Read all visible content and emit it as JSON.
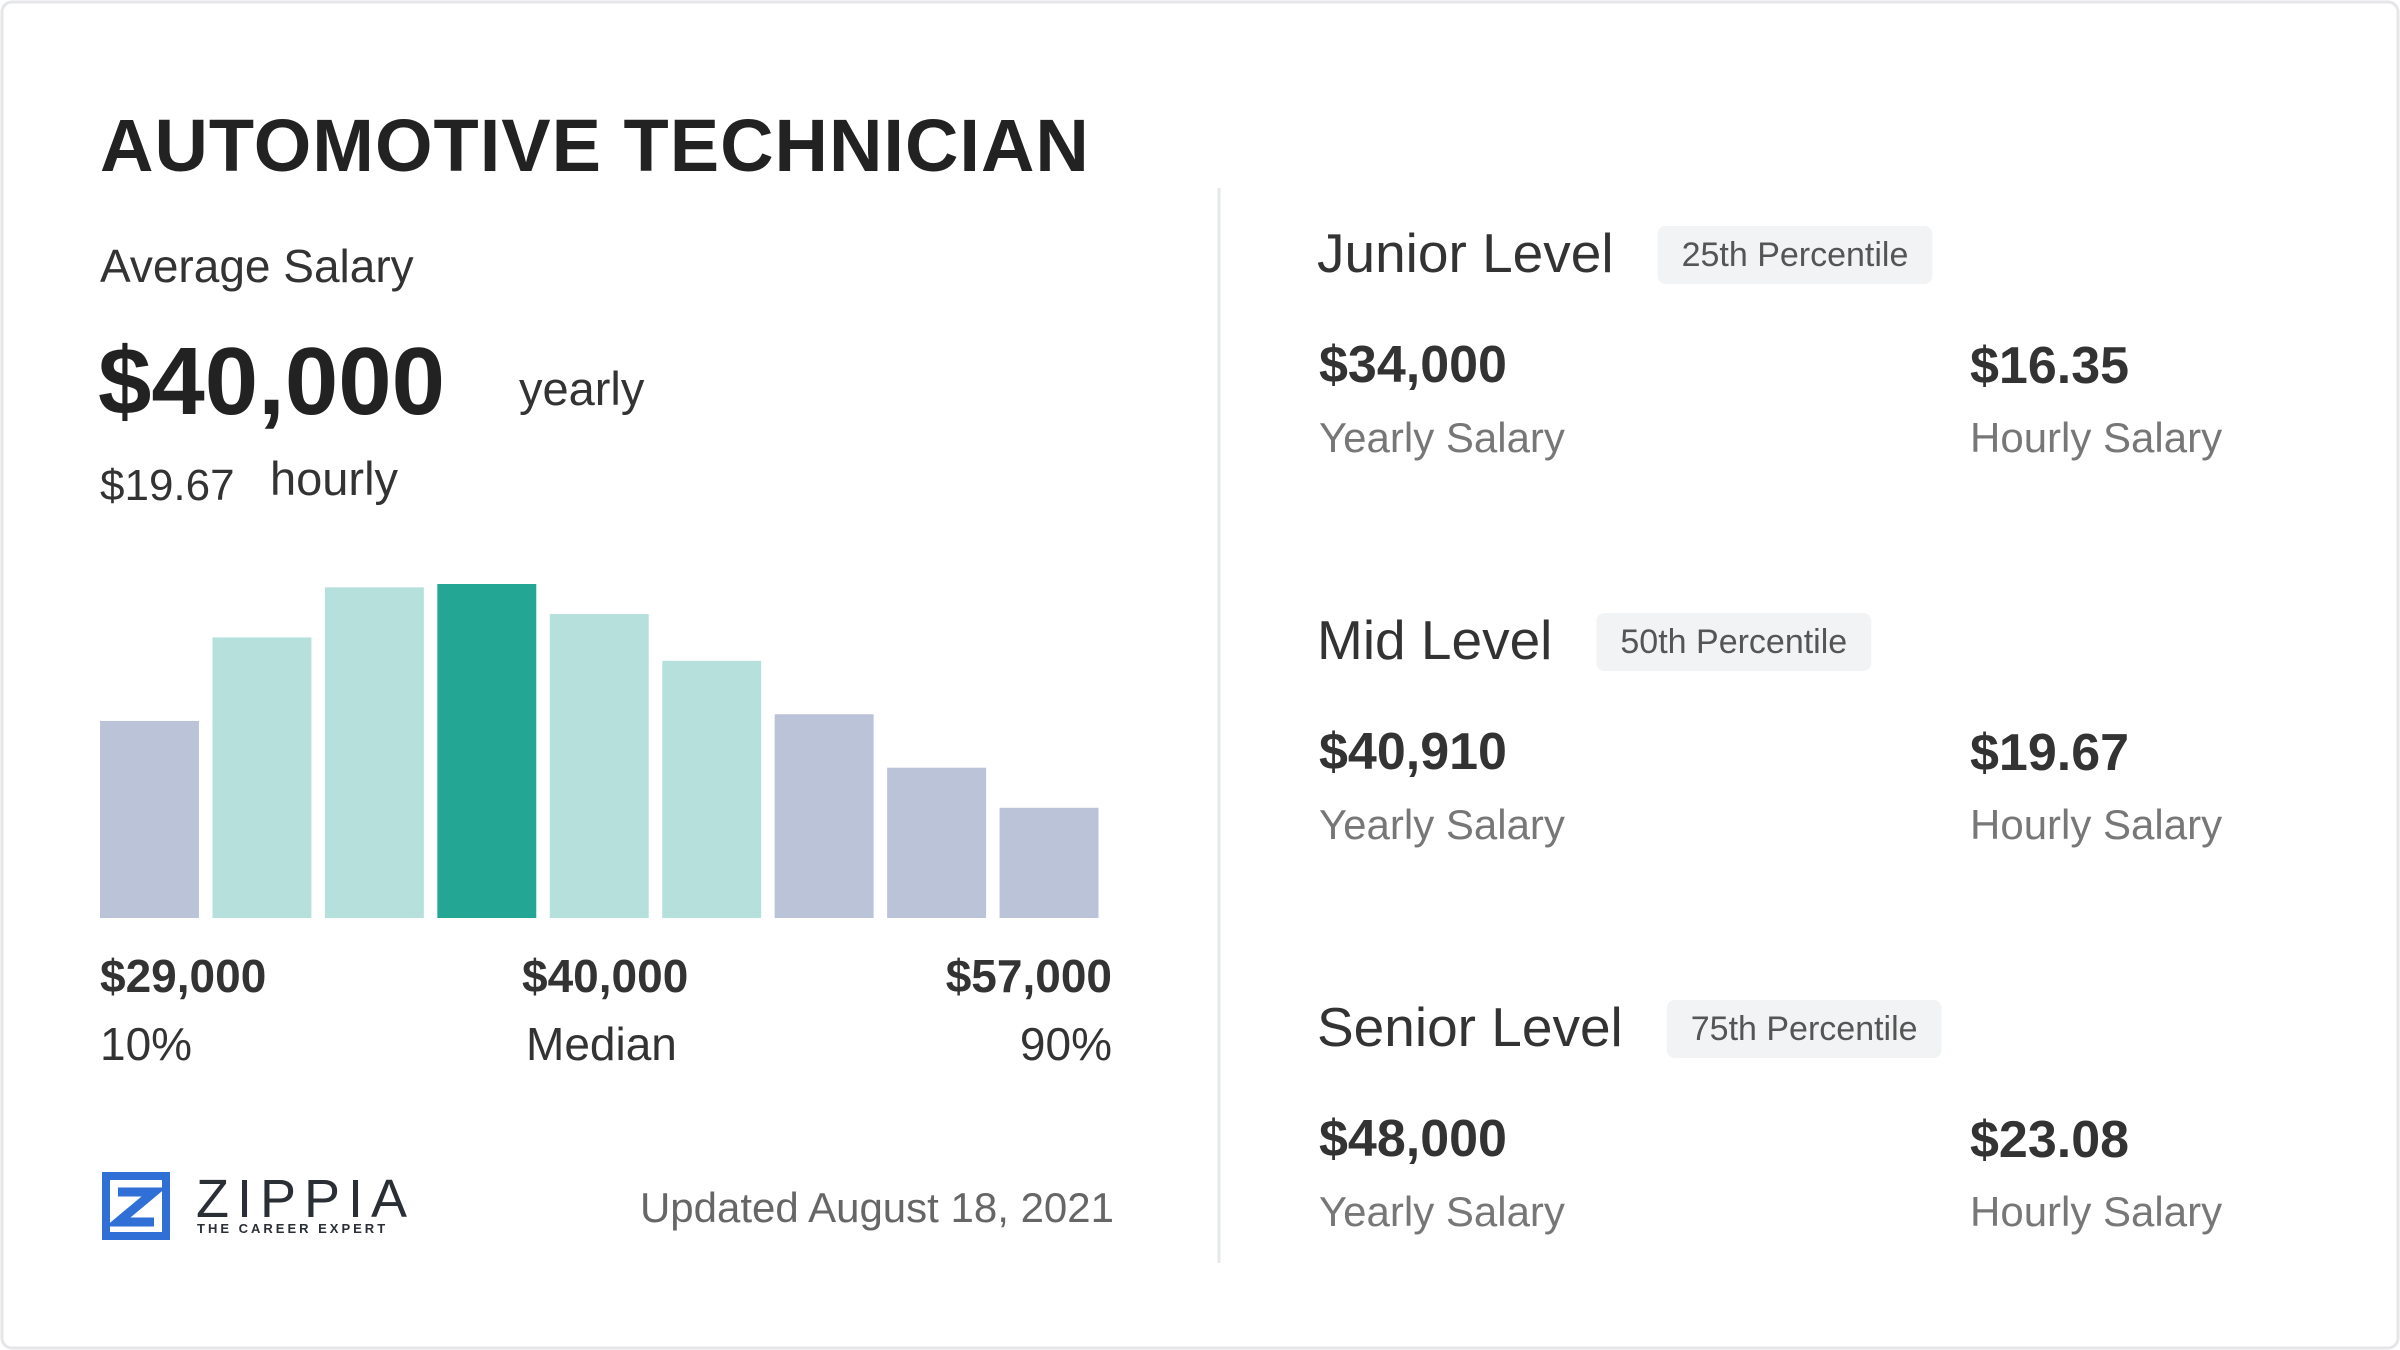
{
  "title": "AUTOMOTIVE TECHNICIAN",
  "average_salary": {
    "label": "Average Salary",
    "yearly": "$40,000",
    "yearly_unit": "yearly",
    "hourly": "$19.67",
    "hourly_unit": "hourly"
  },
  "chart_data": {
    "type": "bar",
    "categories": [
      null,
      null,
      null,
      null,
      null,
      null,
      null,
      null,
      null
    ],
    "values": [
      59,
      84,
      99,
      100,
      91,
      77,
      61,
      45,
      33
    ],
    "colors": [
      "#bac3d8",
      "#b6e0dc",
      "#b6e0dc",
      "#23a693",
      "#b6e0dc",
      "#b6e0dc",
      "#bac3d8",
      "#bac3d8",
      "#bac3d8"
    ],
    "ylim": [
      0,
      100
    ],
    "range_labels": [
      {
        "amount": "$29,000",
        "caption": "10%"
      },
      {
        "amount": "$40,000",
        "caption": "Median"
      },
      {
        "amount": "$57,000",
        "caption": "90%"
      }
    ]
  },
  "footer": {
    "brand": "ZIPPIA",
    "tagline": "THE CAREER EXPERT",
    "updated": "Updated August 18, 2021"
  },
  "levels": [
    {
      "name": "Junior Level",
      "percentile": "25th Percentile",
      "yearly": "$34,000",
      "yearly_label": "Yearly Salary",
      "hourly": "$16.35",
      "hourly_label": "Hourly Salary"
    },
    {
      "name": "Mid Level",
      "percentile": "50th Percentile",
      "yearly": "$40,910",
      "yearly_label": "Yearly Salary",
      "hourly": "$19.67",
      "hourly_label": "Hourly Salary"
    },
    {
      "name": "Senior Level",
      "percentile": "75th Percentile",
      "yearly": "$48,000",
      "yearly_label": "Yearly Salary",
      "hourly": "$23.08",
      "hourly_label": "Hourly Salary"
    }
  ]
}
